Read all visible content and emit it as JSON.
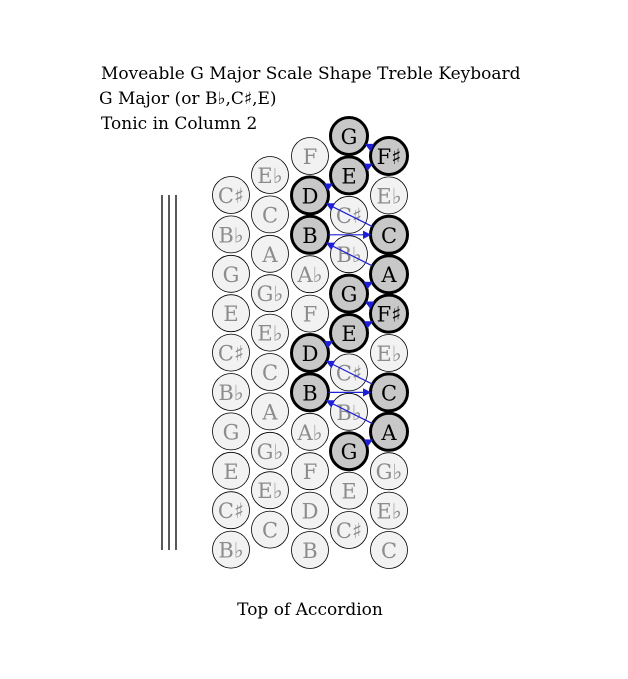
{
  "title": {
    "line1": "Moveable G Major Scale Shape Treble Keyboard",
    "line2": "G Major (or B♭,C♯,E)",
    "line3": "Tonic in Column 2"
  },
  "footer": "Top of Accordion",
  "colors": {
    "button_fill": "#f2f2f2",
    "button_stroke": "#000000",
    "inactive_text": "#8c8c8c",
    "active_fill": "#c8c8c8",
    "active_text": "#000000",
    "arrow": "#1f1fd6"
  },
  "columns": [
    {
      "id": "col1",
      "notes": [
        "C♯",
        "B♭",
        "G",
        "E",
        "C♯",
        "B♭",
        "G",
        "E",
        "C♯",
        "B♭"
      ]
    },
    {
      "id": "col2",
      "notes": [
        "E♭",
        "C",
        "A",
        "G♭",
        "E♭",
        "C",
        "A",
        "G♭",
        "E♭",
        "C"
      ]
    },
    {
      "id": "col3",
      "notes": [
        "F",
        "D",
        "B",
        "A♭",
        "F",
        "D",
        "B",
        "A♭",
        "F",
        "D",
        "B"
      ]
    },
    {
      "id": "col4",
      "notes": [
        "G",
        "E",
        "C♯",
        "B♭",
        "G",
        "E",
        "C♯",
        "B♭",
        "G",
        "E",
        "C♯"
      ]
    },
    {
      "id": "col5",
      "notes": [
        "F♯",
        "E♭",
        "C",
        "A",
        "F♯",
        "E♭",
        "C",
        "A",
        "G♭",
        "E♭",
        "C"
      ]
    }
  ],
  "highlighted": [
    {
      "col": 4,
      "row": 8,
      "note": "G"
    },
    {
      "col": 5,
      "row": 7,
      "note": "A"
    },
    {
      "col": 3,
      "row": 6,
      "note": "B"
    },
    {
      "col": 5,
      "row": 6,
      "note": "C"
    },
    {
      "col": 3,
      "row": 5,
      "note": "D"
    },
    {
      "col": 4,
      "row": 5,
      "note": "E"
    },
    {
      "col": 5,
      "row": 4,
      "note": "F♯"
    },
    {
      "col": 4,
      "row": 4,
      "note": "G"
    },
    {
      "col": 5,
      "row": 3,
      "note": "A"
    },
    {
      "col": 3,
      "row": 2,
      "note": "B"
    },
    {
      "col": 5,
      "row": 2,
      "note": "C"
    },
    {
      "col": 3,
      "row": 1,
      "note": "D"
    },
    {
      "col": 4,
      "row": 1,
      "note": "E"
    },
    {
      "col": 5,
      "row": 0,
      "note": "F♯"
    },
    {
      "col": 4,
      "row": 0,
      "note": "G"
    }
  ],
  "scale_path": [
    [
      4,
      8
    ],
    [
      5,
      7
    ],
    [
      3,
      6
    ],
    [
      5,
      6
    ],
    [
      3,
      5
    ],
    [
      4,
      5
    ],
    [
      5,
      4
    ],
    [
      4,
      4
    ],
    [
      5,
      3
    ],
    [
      3,
      2
    ],
    [
      5,
      2
    ],
    [
      3,
      1
    ],
    [
      4,
      1
    ],
    [
      5,
      0
    ],
    [
      4,
      0
    ]
  ]
}
